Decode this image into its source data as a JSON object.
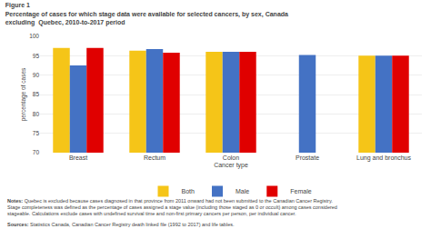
{
  "chart_data": {
    "type": "bar",
    "title": "Figure 1\nPercentage of cases for which stage data were available for selected cancers, by sex, Canada\nexcluding  Quebec, 2010-to-2017 period",
    "xlabel": "Cancer type",
    "ylabel": "percentage of cases",
    "categories": [
      "Breast",
      "Rectum",
      "Colon",
      "Prostate",
      "Lung and bronchus"
    ],
    "series": [
      {
        "name": "Both",
        "color": "#F5C518",
        "values": [
          97.0,
          96.3,
          96.0,
          null,
          95.0
        ]
      },
      {
        "name": "Male",
        "color": "#4472C4",
        "values": [
          92.5,
          96.7,
          96.0,
          95.2,
          95.0
        ]
      },
      {
        "name": "Female",
        "color": "#E00000",
        "values": [
          97.0,
          95.8,
          96.0,
          null,
          95.0
        ]
      }
    ],
    "ylim": [
      70,
      100
    ],
    "yticks": [
      70,
      75,
      80,
      85,
      90,
      95,
      100
    ],
    "grid": true,
    "legend": "bottom",
    "annotations": [
      {
        "heading": "Notes:",
        "text": " Quebec is excluded because cases diagnosed in that province from 2011 onward had not been submitted to the Canadian Cancer Registry.\nStage completeness was defined as the percentage of cases assigned a stage value (including those staged as 0 or occult) among cases considered\nstageable. Calculations exclude cases with undefined survival time and non-first primary cancers per person, per individual cancer."
      },
      {
        "heading": "Sources:",
        "text": " Statistics Canada, Canadian Cancer Registry death linked file (1992 to 2017) and life tables."
      }
    ]
  }
}
